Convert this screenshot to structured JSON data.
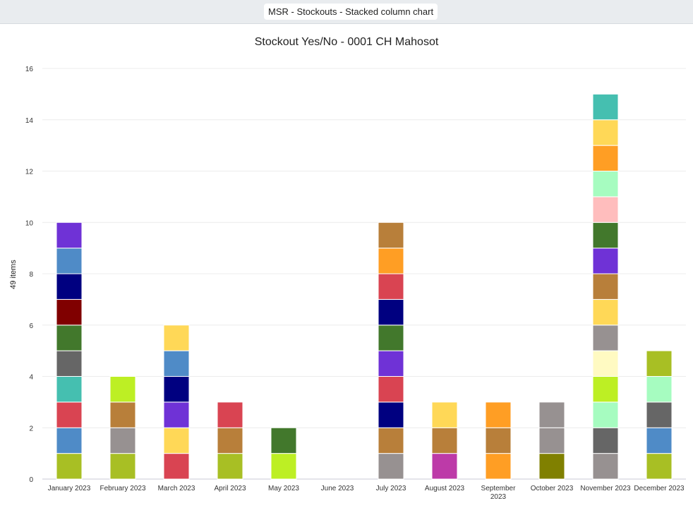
{
  "tab": {
    "label": "MSR - Stockouts - Stacked column chart"
  },
  "chart_data": {
    "type": "bar",
    "stacked": true,
    "title": "Stockout Yes/No - 0001 CH Mahosot",
    "xlabel": "",
    "ylabel": "49 items",
    "ylim": [
      0,
      16
    ],
    "yticks": [
      0,
      2,
      4,
      6,
      8,
      10,
      12,
      14,
      16
    ],
    "grid": true,
    "legend": "none",
    "categories": [
      "January 2023",
      "February 2023",
      "March 2023",
      "April 2023",
      "May 2023",
      "June 2023",
      "July 2023",
      "August 2023",
      "September 2023",
      "October 2023",
      "November 2023",
      "December 2023"
    ],
    "totals": [
      10,
      4,
      6,
      3,
      2,
      0,
      10,
      3,
      3,
      3,
      15,
      5
    ],
    "stacks": [
      [
        "#a8bf24",
        "#4f8bc7",
        "#d94452",
        "#45bfb0",
        "#666666",
        "#42782c",
        "#800000",
        "#000080",
        "#4f8bc7",
        "#6f32d6"
      ],
      [
        "#a8bf24",
        "#979191",
        "#b87f3a",
        "#bdef24"
      ],
      [
        "#d94452",
        "#ffd857",
        "#6f32d6",
        "#000080",
        "#4f8bc7",
        "#ffd857"
      ],
      [
        "#a8bf24",
        "#b87f3a",
        "#d94452"
      ],
      [
        "#bdef24",
        "#42782c"
      ],
      [],
      [
        "#979191",
        "#b87f3a",
        "#000080",
        "#d94452",
        "#6f32d6",
        "#42782c",
        "#000080",
        "#d94452",
        "#ff9e24",
        "#b87f3a"
      ],
      [
        "#bd3aa8",
        "#b87f3a",
        "#ffd857"
      ],
      [
        "#ff9e24",
        "#b87f3a",
        "#ff9e24"
      ],
      [
        "#808000",
        "#979191",
        "#979191"
      ],
      [
        "#979191",
        "#666666",
        "#a6fcc0",
        "#bdef24",
        "#fffac2",
        "#979191",
        "#ffd857",
        "#b87f3a",
        "#6f32d6",
        "#42782c",
        "#ffbdbd",
        "#a6fcc0",
        "#ff9e24",
        "#ffd857",
        "#45bfb0"
      ],
      [
        "#a8bf24",
        "#4f8bc7",
        "#666666",
        "#a6fcc0",
        "#a8bf24"
      ]
    ]
  }
}
